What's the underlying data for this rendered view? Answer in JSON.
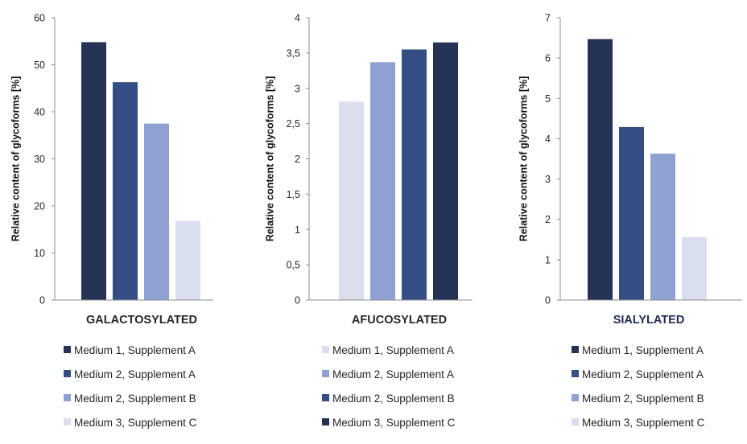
{
  "colors": {
    "shade_1": "#243354",
    "shade_2": "#354f84",
    "shade_3": "#8fa1d1",
    "shade_4": "#dadff0",
    "axis": "#8c8c8c",
    "text": "#262626",
    "sialylated_title": "#1f2a55"
  },
  "chart_data": [
    {
      "type": "bar",
      "title": "GALACTOSYLATED",
      "ylabel": "Relative content of glycoforms [%]",
      "ylim": [
        0,
        60
      ],
      "yticks": [
        "0",
        "10",
        "20",
        "30",
        "40",
        "50",
        "60"
      ],
      "series": [
        {
          "name": "Medium 1, Supplement A",
          "value": 54.8,
          "color": "#243354"
        },
        {
          "name": "Medium 2, Supplement A",
          "value": 46.3,
          "color": "#354f84"
        },
        {
          "name": "Medium 2, Supplement B",
          "value": 37.5,
          "color": "#8fa1d1"
        },
        {
          "name": "Medium 3, Supplement C",
          "value": 16.8,
          "color": "#dadff0"
        }
      ]
    },
    {
      "type": "bar",
      "title": "AFUCOSYLATED",
      "ylabel": "Relative content of glycoforms [%]",
      "ylim": [
        0,
        4
      ],
      "yticks": [
        "0",
        "0,5",
        "1",
        "1,5",
        "2",
        "2,5",
        "3",
        "3,5",
        "4"
      ],
      "series": [
        {
          "name": "Medium 1, Supplement A",
          "value": 2.81,
          "color": "#dadff0"
        },
        {
          "name": "Medium 2, Supplement A",
          "value": 3.37,
          "color": "#8fa1d1"
        },
        {
          "name": "Medium 2, Supplement B",
          "value": 3.55,
          "color": "#354f84"
        },
        {
          "name": "Medium 3, Supplement C",
          "value": 3.65,
          "color": "#243354"
        }
      ]
    },
    {
      "type": "bar",
      "title": "SIALYLATED",
      "ylabel": "Relative content of glycoforms [%]",
      "ylim": [
        0,
        7
      ],
      "yticks": [
        "0",
        "1",
        "2",
        "3",
        "4",
        "5",
        "6",
        "7"
      ],
      "series": [
        {
          "name": "Medium 1, Supplement A",
          "value": 6.47,
          "color": "#243354"
        },
        {
          "name": "Medium 2, Supplement A",
          "value": 4.29,
          "color": "#354f84"
        },
        {
          "name": "Medium 2, Supplement B",
          "value": 3.63,
          "color": "#8fa1d1"
        },
        {
          "name": "Medium 3, Supplement C",
          "value": 1.56,
          "color": "#dadff0"
        }
      ]
    }
  ]
}
